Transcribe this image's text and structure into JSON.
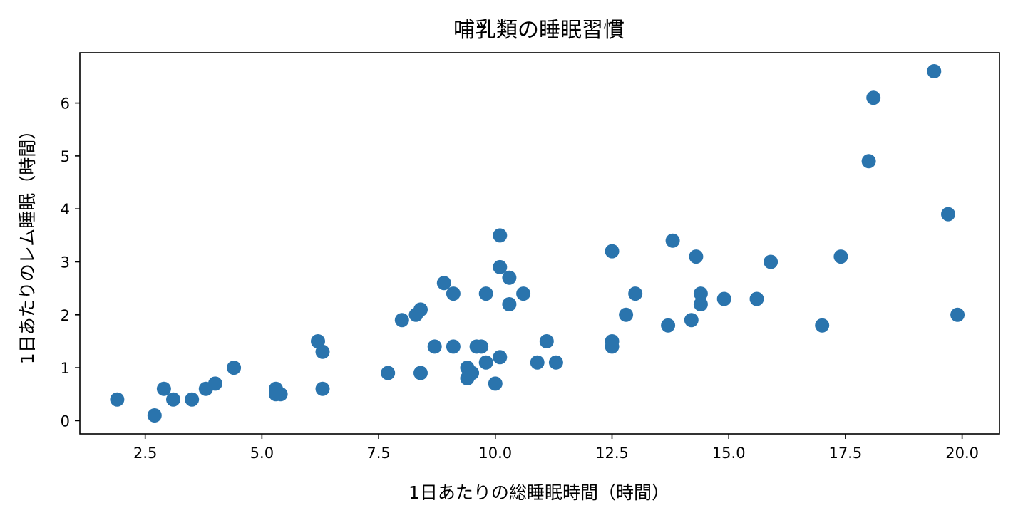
{
  "chart_data": {
    "type": "scatter",
    "title": "哺乳類の睡眠習慣",
    "xlabel": "1日あたりの総睡眠時間（時間）",
    "ylabel": "1日あたりのレム睡眠（時間）",
    "xlim": [
      1.1,
      20.8
    ],
    "ylim": [
      -0.25,
      6.95
    ],
    "xticks": [
      2.5,
      5.0,
      7.5,
      10.0,
      12.5,
      15.0,
      17.5,
      20.0
    ],
    "xtick_labels": [
      "2.5",
      "5.0",
      "7.5",
      "10.0",
      "12.5",
      "15.0",
      "17.5",
      "20.0"
    ],
    "yticks": [
      0,
      1,
      2,
      3,
      4,
      5,
      6
    ],
    "ytick_labels": [
      "0",
      "1",
      "2",
      "3",
      "4",
      "5",
      "6"
    ],
    "grid": false,
    "marker_color": "#2a74ad",
    "points": [
      [
        1.9,
        0.4
      ],
      [
        2.7,
        0.1
      ],
      [
        2.9,
        0.6
      ],
      [
        3.1,
        0.4
      ],
      [
        3.5,
        0.4
      ],
      [
        3.8,
        0.6
      ],
      [
        4.0,
        0.7
      ],
      [
        4.4,
        1.0
      ],
      [
        5.3,
        0.6
      ],
      [
        5.3,
        0.5
      ],
      [
        5.4,
        0.5
      ],
      [
        6.2,
        1.5
      ],
      [
        6.3,
        1.3
      ],
      [
        6.3,
        0.6
      ],
      [
        7.7,
        0.9
      ],
      [
        8.0,
        1.9
      ],
      [
        8.3,
        2.0
      ],
      [
        8.4,
        2.1
      ],
      [
        8.4,
        0.9
      ],
      [
        8.7,
        1.4
      ],
      [
        8.9,
        2.6
      ],
      [
        9.1,
        2.4
      ],
      [
        9.1,
        1.4
      ],
      [
        9.4,
        1.0
      ],
      [
        9.4,
        0.8
      ],
      [
        9.5,
        0.9
      ],
      [
        9.6,
        1.4
      ],
      [
        9.7,
        1.4
      ],
      [
        9.8,
        2.4
      ],
      [
        9.8,
        1.1
      ],
      [
        10.0,
        0.7
      ],
      [
        10.1,
        3.5
      ],
      [
        10.1,
        2.9
      ],
      [
        10.1,
        1.2
      ],
      [
        10.3,
        2.7
      ],
      [
        10.3,
        2.2
      ],
      [
        10.6,
        2.4
      ],
      [
        10.9,
        1.1
      ],
      [
        11.1,
        1.5
      ],
      [
        11.3,
        1.1
      ],
      [
        12.5,
        3.2
      ],
      [
        12.5,
        1.5
      ],
      [
        12.5,
        1.4
      ],
      [
        12.8,
        2.0
      ],
      [
        13.0,
        2.4
      ],
      [
        13.7,
        1.8
      ],
      [
        13.8,
        3.4
      ],
      [
        14.2,
        1.9
      ],
      [
        14.3,
        3.1
      ],
      [
        14.4,
        2.4
      ],
      [
        14.4,
        2.2
      ],
      [
        14.9,
        2.3
      ],
      [
        15.6,
        2.3
      ],
      [
        15.9,
        3.0
      ],
      [
        17.0,
        1.8
      ],
      [
        17.4,
        3.1
      ],
      [
        18.0,
        4.9
      ],
      [
        18.1,
        6.1
      ],
      [
        19.4,
        6.6
      ],
      [
        19.7,
        3.9
      ],
      [
        19.9,
        2.0
      ]
    ]
  }
}
